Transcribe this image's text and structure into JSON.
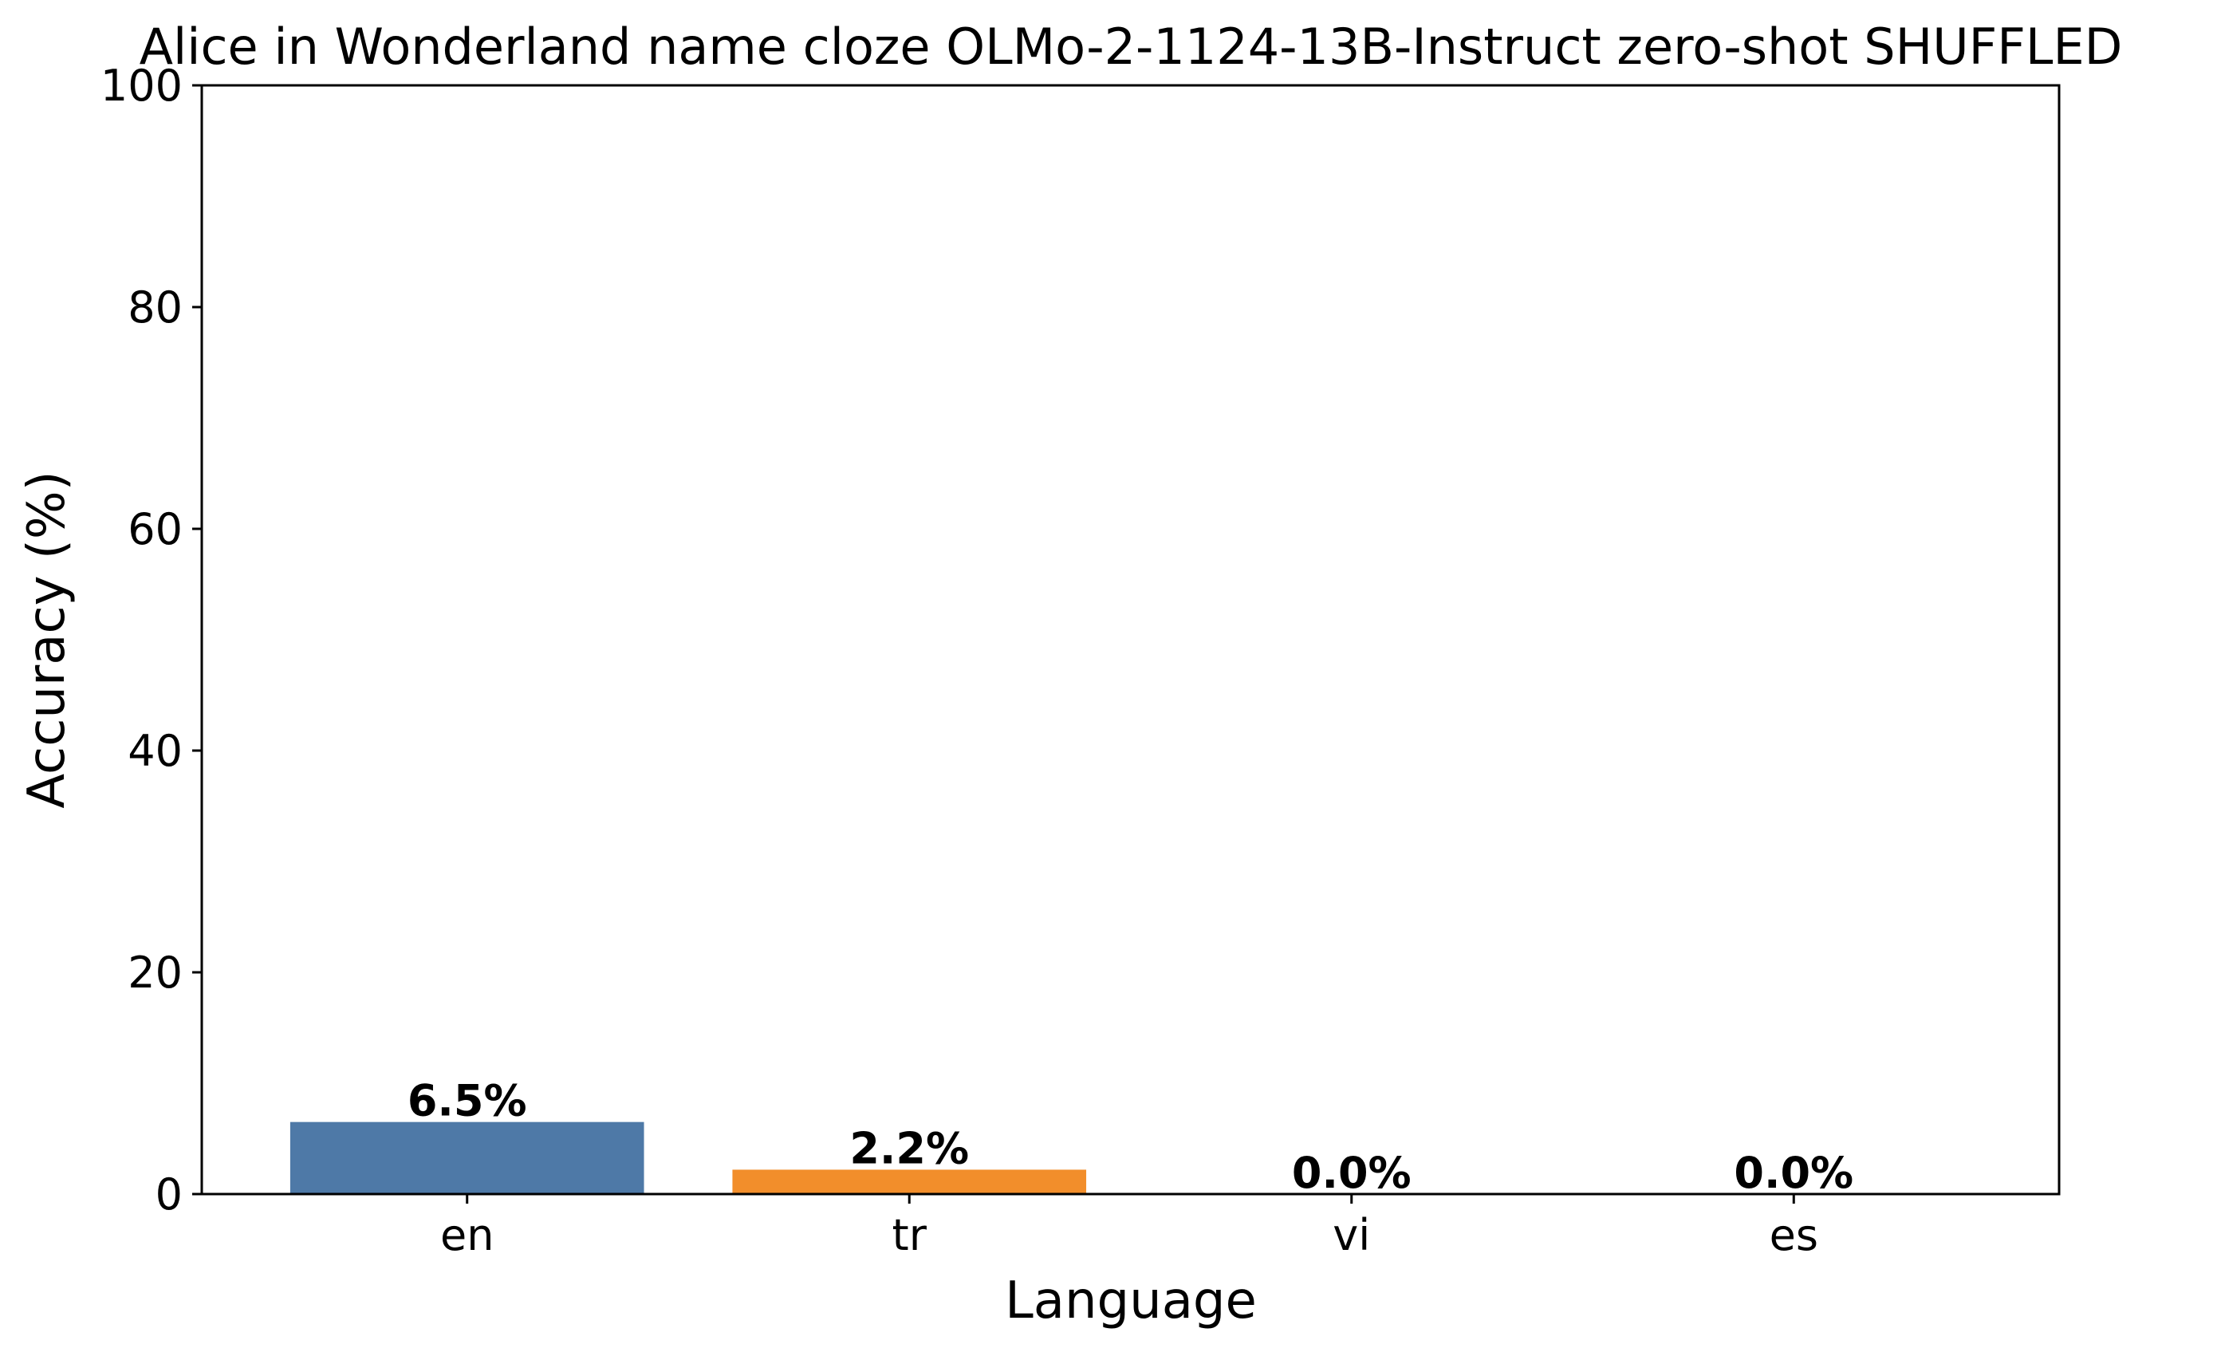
{
  "chart_data": {
    "type": "bar",
    "title": "Alice in Wonderland name cloze OLMo-2-1124-13B-Instruct zero-shot SHUFFLED",
    "xlabel": "Language",
    "ylabel": "Accuracy (%)",
    "categories": [
      "en",
      "tr",
      "vi",
      "es"
    ],
    "values": [
      6.5,
      2.2,
      0.0,
      0.0
    ],
    "value_labels": [
      "6.5%",
      "2.2%",
      "0.0%",
      "0.0%"
    ],
    "colors": [
      "#4e79a7",
      "#f28e2b",
      "#e15759",
      "#76b7b2"
    ],
    "ylim": [
      0,
      100
    ],
    "yticks": [
      0,
      20,
      40,
      60,
      80,
      100
    ],
    "ytick_labels": [
      "0",
      "20",
      "40",
      "60",
      "80",
      "100"
    ],
    "grid": false,
    "legend": "none"
  }
}
